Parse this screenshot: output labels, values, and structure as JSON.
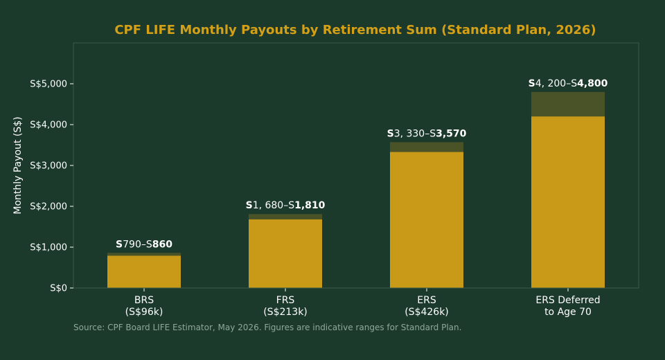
{
  "chart_data": {
    "type": "bar",
    "title": "CPF LIFE Monthly Payouts by Retirement Sum (Standard Plan, 2026)",
    "ylabel": "Monthly Payout (S$)",
    "xlabel": "",
    "ylim": [
      0,
      6000
    ],
    "yticks": [
      0,
      1000,
      2000,
      3000,
      4000,
      5000
    ],
    "ytick_labels": [
      "S$0",
      "S$1,000",
      "S$2,000",
      "S$3,000",
      "S$4,000",
      "S$5,000"
    ],
    "categories": [
      [
        "BRS",
        "(S$96k)"
      ],
      [
        "FRS",
        "(S$213k)"
      ],
      [
        "ERS",
        "(S$426k)"
      ],
      [
        "ERS Deferred",
        "to Age 70"
      ]
    ],
    "series": [
      {
        "values": [
          790,
          1680,
          3330,
          4200
        ]
      },
      {
        "values": [
          860,
          1810,
          3570,
          4800
        ]
      }
    ],
    "data_labels": [
      {
        "bold_prefix": "S",
        "regular": "790–S",
        "bold_suffix": "860"
      },
      {
        "bold_prefix": "S",
        "regular": "1, 680–S",
        "bold_suffix": "1,810"
      },
      {
        "bold_prefix": "S",
        "regular": "3, 330–S",
        "bold_suffix": "3,570"
      },
      {
        "bold_prefix": "S",
        "regular": "4, 200–S",
        "bold_suffix": "4,800"
      }
    ],
    "source": "Source: CPF Board LIFE Estimator, May 2026. Figures are indicative ranges for Standard Plan.",
    "colors": {
      "background": "#1b3a2c",
      "bar_low": "#c89a18",
      "bar_range": "#4a5228",
      "title": "#d4a017",
      "text": "#ffffff",
      "source": "#8fa89a",
      "frame": "#3b5a4a"
    }
  }
}
